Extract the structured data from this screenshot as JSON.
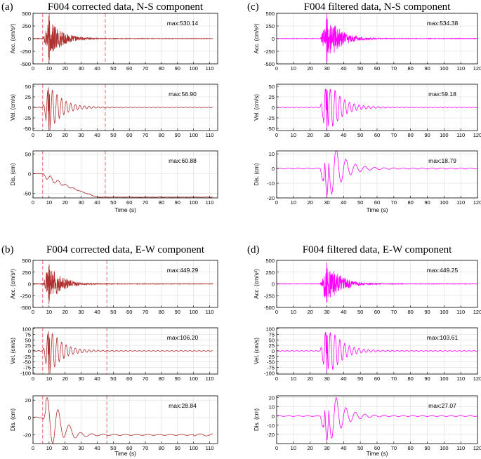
{
  "panels": [
    {
      "id": "a",
      "letter": "(a)",
      "title": "F004 corrected data, N-S component",
      "color": "#b03030",
      "xlabel": "Time (s)",
      "xlim": [
        0,
        115
      ],
      "xticks": [
        0,
        10,
        20,
        30,
        40,
        50,
        60,
        70,
        80,
        90,
        100,
        110
      ],
      "markers": [
        6,
        45
      ],
      "marker_color": "#f08080",
      "subplots": [
        {
          "ylabel": "Acc. (cm/s²)",
          "ylim": [
            -500,
            500
          ],
          "yticks": [
            500,
            250,
            0,
            -250,
            -500
          ],
          "max_label": "max:530.14",
          "max": 530.14,
          "type": "acc"
        },
        {
          "ylabel": "Vel. (cm/s)",
          "ylim": [
            -55,
            55
          ],
          "yticks": [
            50,
            25,
            0,
            -25,
            -50
          ],
          "max_label": "max:56.90",
          "max": 56.9,
          "type": "vel"
        },
        {
          "ylabel": "Dis. (cm)",
          "ylim": [
            -62,
            58
          ],
          "yticks": [
            50,
            0,
            -50
          ],
          "max_label": "max:60.88",
          "max": 60.88,
          "type": "dis_drift",
          "drift": -60
        }
      ]
    },
    {
      "id": "c",
      "letter": "(c)",
      "title": "F004 filtered data, N-S component",
      "color": "#ff00ff",
      "xlabel": "Time (s)",
      "xlim": [
        0,
        120
      ],
      "xticks": [
        0,
        10,
        20,
        30,
        40,
        50,
        60,
        70,
        80,
        90,
        100,
        110,
        120
      ],
      "markers": [],
      "subplots": [
        {
          "ylabel": "Acc. (cm/s²)",
          "ylim": [
            -500,
            500
          ],
          "yticks": [
            500,
            250,
            0,
            -250,
            -500
          ],
          "max_label": "max:534.38",
          "max": 534.38,
          "type": "acc"
        },
        {
          "ylabel": "Vel. (cm/s)",
          "ylim": [
            -55,
            55
          ],
          "yticks": [
            50,
            25,
            0,
            -25,
            -50
          ],
          "max_label": "max:59.18",
          "max": 59.18,
          "type": "vel"
        },
        {
          "ylabel": "Dis. (cm)",
          "ylim": [
            -20,
            12
          ],
          "yticks": [
            10,
            0,
            -10,
            -20
          ],
          "max_label": "max:18.79",
          "max": 18.79,
          "type": "dis_filt"
        }
      ]
    },
    {
      "id": "b",
      "letter": "(b)",
      "title": "F004 corrected data, E-W component",
      "color": "#b03030",
      "xlabel": "Time (s)",
      "xlim": [
        0,
        115
      ],
      "xticks": [
        0,
        10,
        20,
        30,
        40,
        50,
        60,
        70,
        80,
        90,
        100,
        110
      ],
      "markers": [
        6,
        46
      ],
      "marker_color": "#f08080",
      "subplots": [
        {
          "ylabel": "Acc. (cm/s²)",
          "ylim": [
            -500,
            500
          ],
          "yticks": [
            500,
            250,
            0,
            -250,
            -500
          ],
          "max_label": "max:449.29",
          "max": 449.29,
          "type": "acc"
        },
        {
          "ylabel": "Vel. (cm/s)",
          "ylim": [
            -105,
            105
          ],
          "yticks": [
            100,
            75,
            50,
            25,
            0,
            -25,
            -50,
            -75,
            -100
          ],
          "max_label": "max:106.20",
          "max": 106.2,
          "type": "vel"
        },
        {
          "ylabel": "Dis. (cm)",
          "ylim": [
            -30,
            25
          ],
          "yticks": [
            20,
            0,
            -20
          ],
          "max_label": "max:28.84",
          "max": 28.84,
          "type": "dis_ew",
          "drift": -20
        }
      ]
    },
    {
      "id": "d",
      "letter": "(d)",
      "title": "F004 filtered data, E-W component",
      "color": "#ff00ff",
      "xlabel": "Time (s)",
      "xlim": [
        0,
        120
      ],
      "xticks": [
        0,
        10,
        20,
        30,
        40,
        50,
        60,
        70,
        80,
        90,
        100,
        110,
        120
      ],
      "markers": [],
      "subplots": [
        {
          "ylabel": "Acc. (cm/s²)",
          "ylim": [
            -500,
            500
          ],
          "yticks": [
            500,
            250,
            0,
            -250,
            -500
          ],
          "max_label": "max:449.25",
          "max": 449.25,
          "type": "acc"
        },
        {
          "ylabel": "Vel. (cm/s)",
          "ylim": [
            -105,
            105
          ],
          "yticks": [
            100,
            75,
            50,
            25,
            0,
            -25,
            -50,
            -75,
            -100
          ],
          "max_label": "max:103.61",
          "max": 103.61,
          "type": "vel"
        },
        {
          "ylabel": "Dis. (cm)",
          "ylim": [
            -30,
            22
          ],
          "yticks": [
            20,
            10,
            0,
            -10,
            -20
          ],
          "max_label": "max:27.07",
          "max": 27.07,
          "type": "dis_filt"
        }
      ]
    }
  ],
  "chart_data": [
    {
      "type": "line",
      "title": "F004 corrected data, N-S component",
      "xlabel": "Time (s)",
      "subplots": [
        {
          "ylabel": "Acc. (cm/s²)",
          "xlim": [
            0,
            115
          ],
          "ylim": [
            -500,
            500
          ],
          "peak": 530.14
        },
        {
          "ylabel": "Vel. (cm/s)",
          "xlim": [
            0,
            115
          ],
          "ylim": [
            -55,
            55
          ],
          "peak": 56.9
        },
        {
          "ylabel": "Dis. (cm)",
          "xlim": [
            0,
            115
          ],
          "ylim": [
            -62,
            58
          ],
          "peak": 60.88
        }
      ]
    },
    {
      "type": "line",
      "title": "F004 filtered data, N-S component",
      "xlabel": "Time (s)",
      "subplots": [
        {
          "ylabel": "Acc. (cm/s²)",
          "xlim": [
            0,
            120
          ],
          "ylim": [
            -500,
            500
          ],
          "peak": 534.38
        },
        {
          "ylabel": "Vel. (cm/s)",
          "xlim": [
            0,
            120
          ],
          "ylim": [
            -55,
            55
          ],
          "peak": 59.18
        },
        {
          "ylabel": "Dis. (cm)",
          "xlim": [
            0,
            120
          ],
          "ylim": [
            -20,
            12
          ],
          "peak": 18.79
        }
      ]
    },
    {
      "type": "line",
      "title": "F004 corrected data, E-W component",
      "xlabel": "Time (s)",
      "subplots": [
        {
          "ylabel": "Acc. (cm/s²)",
          "xlim": [
            0,
            115
          ],
          "ylim": [
            -500,
            500
          ],
          "peak": 449.29
        },
        {
          "ylabel": "Vel. (cm/s)",
          "xlim": [
            0,
            115
          ],
          "ylim": [
            -105,
            105
          ],
          "peak": 106.2
        },
        {
          "ylabel": "Dis. (cm)",
          "xlim": [
            0,
            115
          ],
          "ylim": [
            -30,
            25
          ],
          "peak": 28.84
        }
      ]
    },
    {
      "type": "line",
      "title": "F004 filtered data, E-W component",
      "xlabel": "Time (s)",
      "subplots": [
        {
          "ylabel": "Acc. (cm/s²)",
          "xlim": [
            0,
            120
          ],
          "ylim": [
            -500,
            500
          ],
          "peak": 449.25
        },
        {
          "ylabel": "Vel. (cm/s)",
          "xlim": [
            0,
            120
          ],
          "ylim": [
            -105,
            105
          ],
          "peak": 103.61
        },
        {
          "ylabel": "Dis. (cm)",
          "xlim": [
            0,
            120
          ],
          "ylim": [
            -30,
            22
          ],
          "peak": 27.07
        }
      ]
    }
  ]
}
